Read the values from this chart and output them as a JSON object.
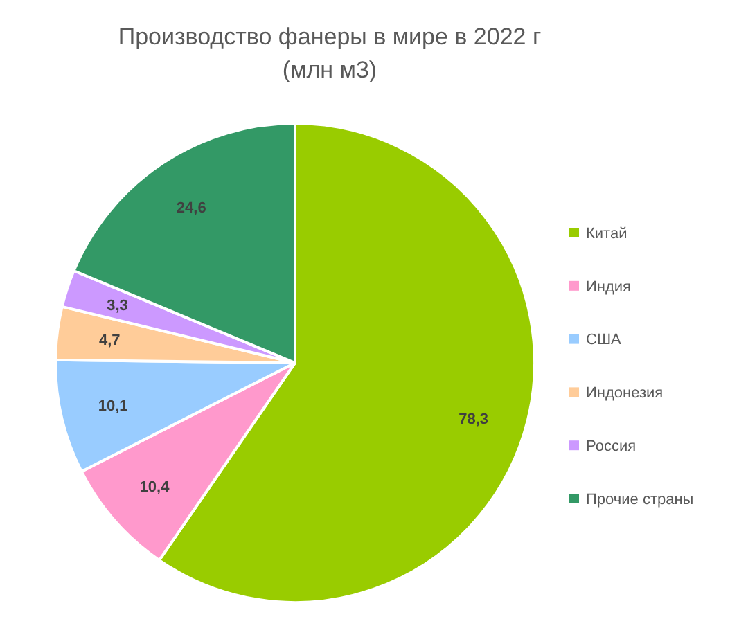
{
  "chart_data": {
    "type": "pie",
    "title": "Производство фанеры в мире в 2022 г\n(млн м3)",
    "categories": [
      "Китай",
      "Индия",
      "США",
      "Индонезия",
      "Россия",
      "Прочие страны"
    ],
    "values": [
      78.3,
      10.4,
      10.1,
      4.7,
      3.3,
      24.6
    ],
    "colors": [
      "#99cc00",
      "#ff99cc",
      "#99ccff",
      "#ffcc99",
      "#cc99ff",
      "#339966"
    ],
    "value_labels": [
      "78,3",
      "10,4",
      "10,1",
      "4,7",
      "3,3",
      "24,6"
    ],
    "legend": "right"
  }
}
